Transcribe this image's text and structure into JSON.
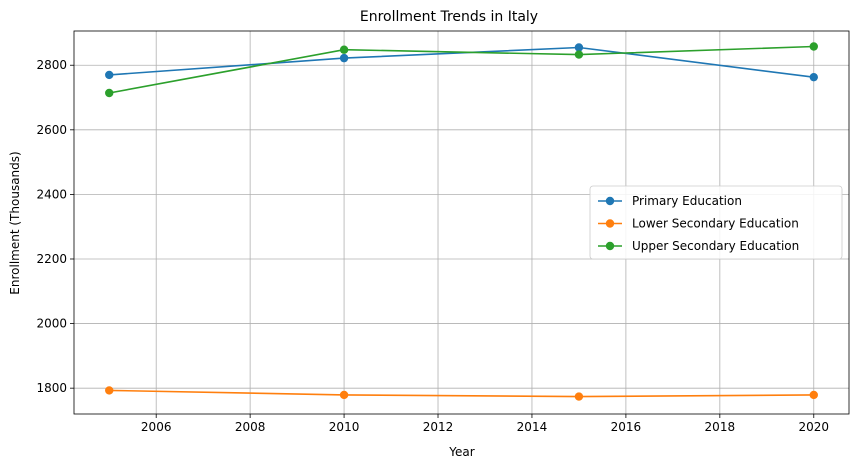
{
  "chart_data": {
    "type": "line",
    "title": "Enrollment Trends in Italy",
    "xlabel": "Year",
    "ylabel": "Enrollment (Thousands)",
    "x": [
      2005,
      2010,
      2015,
      2020
    ],
    "xlim": [
      2004.25,
      2020.75
    ],
    "ylim": [
      1720,
      2906
    ],
    "xticks": [
      2006,
      2008,
      2010,
      2012,
      2014,
      2016,
      2018,
      2020
    ],
    "yticks": [
      1800,
      2000,
      2200,
      2400,
      2600,
      2800
    ],
    "grid": true,
    "legend_position": "center-right",
    "series": [
      {
        "name": "Primary Education",
        "color": "#1f77b4",
        "values": [
          2770,
          2822,
          2855,
          2763
        ]
      },
      {
        "name": "Lower Secondary Education",
        "color": "#ff7f0e",
        "values": [
          1793,
          1779,
          1774,
          1779
        ]
      },
      {
        "name": "Upper Secondary Education",
        "color": "#2ca02c",
        "values": [
          2714,
          2848,
          2833,
          2858
        ]
      }
    ]
  }
}
